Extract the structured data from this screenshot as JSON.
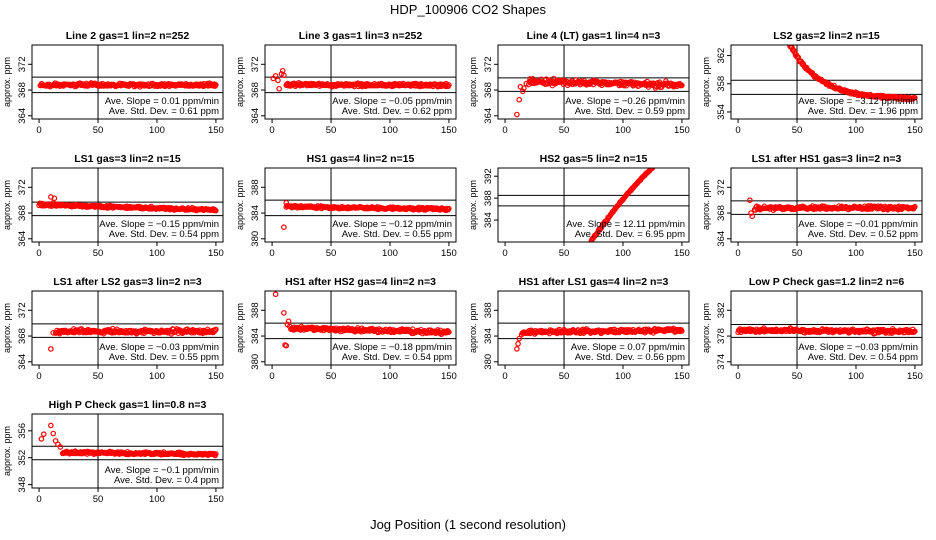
{
  "title": "HDP_100906  CO2 Shapes",
  "xlabel": "Jog Position (1 second resolution)",
  "ylabel": "approx. ppm",
  "marker_color": "#ff0000",
  "chart_data": [
    {
      "type": "scatter",
      "title": "Line 2 gas=1 lin=2 n=252",
      "ylim": [
        363.5,
        375
      ],
      "yticks": [
        364,
        368,
        372
      ],
      "xlim": [
        -6,
        156
      ],
      "xticks": [
        0,
        50,
        100,
        150
      ],
      "hlines": [
        370,
        367.6
      ],
      "vline": 50,
      "slope_label": "Ave. Slope =  0.01  ppm/min",
      "sd_label": "Ave. Std. Dev. =  0.61  ppm",
      "series": {
        "x_start": 1,
        "x_end": 150,
        "y_start": 368.8,
        "y_end": 368.8,
        "noise": 0.25,
        "leading_points": []
      }
    },
    {
      "type": "scatter",
      "title": "Line 3 gas=1 lin=3 n=252",
      "ylim": [
        363.5,
        375
      ],
      "yticks": [
        364,
        368,
        372
      ],
      "xlim": [
        -6,
        156
      ],
      "xticks": [
        0,
        50,
        100,
        150
      ],
      "hlines": [
        370,
        367.6
      ],
      "vline": 50,
      "slope_label": "Ave. Slope =  −0.05  ppm/min",
      "sd_label": "Ave. Std. Dev. =  0.62  ppm",
      "series": {
        "x_start": 12,
        "x_end": 150,
        "y_start": 368.8,
        "y_end": 368.8,
        "noise": 0.25,
        "leading_points": [
          [
            1,
            369.8
          ],
          [
            3,
            370.2
          ],
          [
            5,
            369.5
          ],
          [
            6,
            368.2
          ],
          [
            8,
            370.5
          ],
          [
            9,
            371.0
          ],
          [
            10,
            370.3
          ]
        ]
      }
    },
    {
      "type": "scatter",
      "title": "Line 4 (LT) gas=1 lin=4 n=3",
      "ylim": [
        363.5,
        375
      ],
      "yticks": [
        364,
        368,
        372
      ],
      "xlim": [
        -6,
        156
      ],
      "xticks": [
        0,
        50,
        100,
        150
      ],
      "hlines": [
        369.9,
        367.8
      ],
      "vline": 50,
      "slope_label": "Ave. Slope =  −0.26  ppm/min",
      "sd_label": "Ave. Std. Dev. =  0.59  ppm",
      "series": {
        "x_start": 20,
        "x_end": 150,
        "y_start": 369.3,
        "y_end": 368.8,
        "noise": 0.45,
        "leading_points": [
          [
            10,
            364.2
          ],
          [
            12,
            366.5
          ],
          [
            13,
            368.5
          ],
          [
            15,
            367.8
          ],
          [
            16,
            368.3
          ],
          [
            18,
            369.0
          ]
        ]
      }
    },
    {
      "type": "scatter",
      "title": "LS2 gas=2 lin=2 n=15",
      "ylim": [
        353,
        363.5
      ],
      "yticks": [
        354,
        358,
        362
      ],
      "xlim": [
        -6,
        156
      ],
      "xticks": [
        0,
        50,
        100,
        150
      ],
      "hlines": [
        358.5,
        356.5
      ],
      "vline": 50,
      "slope_label": "Ave. Slope =  −3.12  ppm/min",
      "sd_label": "Ave. Std. Dev. =  1.96  ppm",
      "series": {
        "x_start": 44,
        "x_end": 150,
        "y_start": 363.5,
        "y_end": 355.9,
        "noise": 0.2,
        "curve": "decay",
        "leading_points": []
      }
    },
    {
      "type": "scatter",
      "title": "LS1 gas=3 lin=2 n=15",
      "ylim": [
        363.5,
        375
      ],
      "yticks": [
        364,
        368,
        372
      ],
      "xlim": [
        -6,
        156
      ],
      "xticks": [
        0,
        50,
        100,
        150
      ],
      "hlines": [
        369.7,
        367.6
      ],
      "vline": 50,
      "slope_label": "Ave. Slope =  −0.15  ppm/min",
      "sd_label": "Ave. Std. Dev. =  0.54  ppm",
      "series": {
        "x_start": 0,
        "x_end": 150,
        "y_start": 369.3,
        "y_end": 368.5,
        "noise": 0.2,
        "leading_points": [
          [
            10,
            370.5
          ],
          [
            12,
            369.6
          ],
          [
            13,
            370.3
          ]
        ]
      }
    },
    {
      "type": "scatter",
      "title": "HS1 gas=4 lin=2 n=15",
      "ylim": [
        379.5,
        391
      ],
      "yticks": [
        380,
        384,
        388
      ],
      "xlim": [
        -6,
        156
      ],
      "xticks": [
        0,
        50,
        100,
        150
      ],
      "hlines": [
        386,
        383.6
      ],
      "vline": 50,
      "slope_label": "Ave. Slope =  −0.12  ppm/min",
      "sd_label": "Ave. Std. Dev. =  0.55  ppm",
      "series": {
        "x_start": 12,
        "x_end": 150,
        "y_start": 385.0,
        "y_end": 384.6,
        "noise": 0.2,
        "leading_points": [
          [
            10,
            381.8
          ],
          [
            12,
            385.6
          ]
        ]
      }
    },
    {
      "type": "scatter",
      "title": "HS2 gas=5 lin=2 n=15",
      "ylim": [
        380,
        393.5
      ],
      "yticks": [
        384,
        388,
        392
      ],
      "xlim": [
        -6,
        156
      ],
      "xticks": [
        0,
        50,
        100,
        150
      ],
      "hlines": [
        388.5,
        386.6
      ],
      "vline": 50,
      "slope_label": "Ave. Slope =  12.11  ppm/min",
      "sd_label": "Ave. Std. Dev. =  6.95  ppm",
      "series": {
        "x_start": 73,
        "x_end": 125,
        "y_start": 380.2,
        "y_end": 393.5,
        "noise": 0.15,
        "curve": "rise",
        "leading_points": []
      }
    },
    {
      "type": "scatter",
      "title": "LS1 after HS1 gas=3 lin=2 n=3",
      "ylim": [
        363.5,
        375
      ],
      "yticks": [
        364,
        368,
        372
      ],
      "xlim": [
        -6,
        156
      ],
      "xticks": [
        0,
        50,
        100,
        150
      ],
      "hlines": [
        369.9,
        367.8
      ],
      "vline": 50,
      "slope_label": "Ave. Slope =  −0.01  ppm/min",
      "sd_label": "Ave. Std. Dev. =  0.52  ppm",
      "series": {
        "x_start": 14,
        "x_end": 150,
        "y_start": 368.8,
        "y_end": 368.8,
        "noise": 0.3,
        "leading_points": [
          [
            10,
            370.0
          ],
          [
            11,
            368.0
          ],
          [
            12,
            367.5
          ]
        ]
      }
    },
    {
      "type": "scatter",
      "title": "LS1 after LS2 gas=3 lin=2 n=3",
      "ylim": [
        363.5,
        375
      ],
      "yticks": [
        364,
        368,
        372
      ],
      "xlim": [
        -6,
        156
      ],
      "xticks": [
        0,
        50,
        100,
        150
      ],
      "hlines": [
        369.9,
        367.8
      ],
      "vline": 50,
      "slope_label": "Ave. Slope =  −0.03  ppm/min",
      "sd_label": "Ave. Std. Dev. =  0.55  ppm",
      "series": {
        "x_start": 14,
        "x_end": 150,
        "y_start": 368.7,
        "y_end": 368.7,
        "noise": 0.35,
        "leading_points": [
          [
            10,
            366.0
          ],
          [
            12,
            368.5
          ]
        ]
      }
    },
    {
      "type": "scatter",
      "title": "HS1 after HS2 gas=4 lin=2 n=3",
      "ylim": [
        379.5,
        391
      ],
      "yticks": [
        380,
        384,
        388
      ],
      "xlim": [
        -6,
        156
      ],
      "xticks": [
        0,
        50,
        100,
        150
      ],
      "hlines": [
        386,
        383.6
      ],
      "vline": 50,
      "slope_label": "Ave. Slope =  −0.18  ppm/min",
      "sd_label": "Ave. Std. Dev. =  0.54  ppm",
      "series": {
        "x_start": 16,
        "x_end": 150,
        "y_start": 385.2,
        "y_end": 384.6,
        "noise": 0.3,
        "leading_points": [
          [
            3,
            390.5
          ],
          [
            10,
            387.6
          ],
          [
            11,
            382.6
          ],
          [
            12,
            382.5
          ],
          [
            13,
            385.8
          ],
          [
            14,
            386.3
          ],
          [
            15,
            385.5
          ]
        ]
      }
    },
    {
      "type": "scatter",
      "title": "HS1 after LS1 gas=4 lin=2 n=3",
      "ylim": [
        379.5,
        391
      ],
      "yticks": [
        380,
        384,
        388
      ],
      "xlim": [
        -6,
        156
      ],
      "xticks": [
        0,
        50,
        100,
        150
      ],
      "hlines": [
        386,
        383.6
      ],
      "vline": 50,
      "slope_label": "Ave. Slope =  0.07  ppm/min",
      "sd_label": "Ave. Std. Dev. =  0.56  ppm",
      "series": {
        "x_start": 14,
        "x_end": 150,
        "y_start": 384.6,
        "y_end": 384.9,
        "noise": 0.3,
        "leading_points": [
          [
            10,
            382.0
          ],
          [
            11,
            382.8
          ],
          [
            12,
            383.6
          ]
        ]
      }
    },
    {
      "type": "scatter",
      "title": "Low P Check gas=1.2 lin=2 n=6",
      "ylim": [
        373.5,
        385
      ],
      "yticks": [
        374,
        378,
        382
      ],
      "xlim": [
        -6,
        156
      ],
      "xticks": [
        0,
        50,
        100,
        150
      ],
      "hlines": [
        379.8,
        377.8
      ],
      "vline": 50,
      "slope_label": "Ave. Slope =  −0.03  ppm/min",
      "sd_label": "Ave. Std. Dev. =  0.54  ppm",
      "series": {
        "x_start": 0,
        "x_end": 150,
        "y_start": 378.9,
        "y_end": 378.7,
        "noise": 0.3,
        "leading_points": []
      }
    },
    {
      "type": "scatter",
      "title": "High P Check gas=1 lin=0.8 n=3",
      "ylim": [
        347.5,
        358.5
      ],
      "yticks": [
        348,
        352,
        356
      ],
      "xlim": [
        -6,
        156
      ],
      "xticks": [
        0,
        50,
        100,
        150
      ],
      "hlines": [
        353.7,
        351.7
      ],
      "vline": 50,
      "slope_label": "Ave. Slope =  −0.1  ppm/min",
      "sd_label": "Ave. Std. Dev. =  0.4  ppm",
      "series": {
        "x_start": 20,
        "x_end": 150,
        "y_start": 352.8,
        "y_end": 352.5,
        "noise": 0.2,
        "leading_points": [
          [
            2,
            354.8
          ],
          [
            4,
            355.5
          ],
          [
            10,
            356.8
          ],
          [
            12,
            355.6
          ],
          [
            14,
            354.5
          ],
          [
            16,
            354.0
          ],
          [
            18,
            353.6
          ]
        ]
      }
    }
  ]
}
